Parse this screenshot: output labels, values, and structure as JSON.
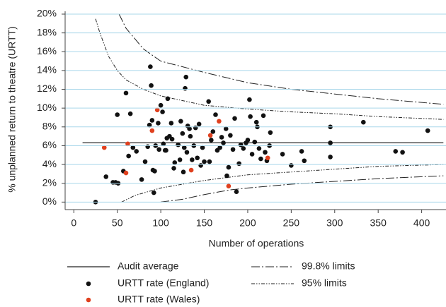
{
  "chart_data": {
    "type": "scatter",
    "xlabel": "Number of operations",
    "ylabel": "% unplanned return to theatre (URTT)",
    "xlim": [
      -10,
      428
    ],
    "ylim": [
      -0.8,
      20.3
    ],
    "xticks": [
      0,
      50,
      100,
      150,
      200,
      250,
      300,
      350,
      400
    ],
    "yticks": [
      {
        "value": 0,
        "label": "0%"
      },
      {
        "value": 2,
        "label": "2%"
      },
      {
        "value": 4,
        "label": "4%"
      },
      {
        "value": 6,
        "label": "6%"
      },
      {
        "value": 8,
        "label": "8%"
      },
      {
        "value": 10,
        "label": "10%"
      },
      {
        "value": 12,
        "label": "12%"
      },
      {
        "value": 14,
        "label": "14%"
      },
      {
        "value": 16,
        "label": "16%"
      },
      {
        "value": 18,
        "label": "18%"
      },
      {
        "value": 20,
        "label": "20%"
      }
    ],
    "grid": true,
    "grid_color": "#a9d7ea",
    "lines": [
      {
        "name": "Audit average",
        "color": "#222222",
        "x": [
          10,
          425
        ],
        "values": [
          6.3,
          6.3
        ]
      }
    ],
    "limits": [
      {
        "name": "99.8% limits",
        "color": "#222222",
        "dash": "12 3 2 3",
        "upper": {
          "x": [
            52,
            60,
            80,
            100,
            150,
            200,
            250,
            300,
            350,
            425
          ],
          "values": [
            20,
            18.5,
            16.3,
            15,
            13.8,
            12.7,
            12,
            11.5,
            11,
            10.4
          ]
        },
        "lower": {
          "x": [
            100,
            125,
            150,
            180,
            200,
            250,
            300,
            350,
            425
          ],
          "values": [
            0,
            0.3,
            0.8,
            1.3,
            1.5,
            1.9,
            2.2,
            2.5,
            2.8
          ]
        }
      },
      {
        "name": "95% limits",
        "color": "#222222",
        "dash": "5 2 1.5 2 1.5 2",
        "upper": {
          "x": [
            25,
            30,
            40,
            50,
            60,
            80,
            100,
            150,
            200,
            250,
            300,
            350,
            425
          ],
          "values": [
            19.5,
            18,
            15.5,
            14,
            13,
            12,
            11.3,
            10.3,
            9.9,
            9.6,
            9.4,
            9.1,
            8.8
          ]
        },
        "lower": {
          "x": [
            55,
            70,
            100,
            125,
            150,
            200,
            250,
            300,
            350,
            425
          ],
          "values": [
            0,
            0.7,
            1.5,
            1.9,
            2.3,
            2.9,
            3.2,
            3.5,
            3.8,
            4.0
          ]
        }
      }
    ],
    "series": [
      {
        "name": "URTT rate (England)",
        "color": "#111111",
        "x": [
          25,
          37,
          45,
          48,
          50,
          51,
          57,
          60,
          63,
          65,
          68,
          72,
          78,
          82,
          85,
          87,
          88,
          89,
          90,
          91,
          92,
          93,
          94,
          97,
          98,
          100,
          102,
          103,
          105,
          106,
          107,
          108,
          110,
          112,
          113,
          115,
          116,
          120,
          122,
          123,
          125,
          126,
          127,
          128,
          129,
          130,
          131,
          133,
          134,
          136,
          138,
          140,
          142,
          144,
          146,
          148,
          150,
          155,
          156,
          158,
          160,
          163,
          165,
          168,
          170,
          172,
          175,
          176,
          178,
          180,
          183,
          185,
          187,
          190,
          192,
          195,
          198,
          200,
          202,
          203,
          205,
          208,
          210,
          211,
          213,
          215,
          218,
          220,
          222,
          225,
          226,
          240,
          250,
          262,
          265,
          295,
          295,
          295,
          333,
          370,
          378,
          407
        ],
        "values": [
          0,
          2.7,
          2.1,
          2.1,
          9.3,
          2.0,
          3.3,
          11.6,
          4.9,
          9.4,
          5.8,
          5.4,
          2.4,
          4.3,
          5.9,
          8.2,
          14.4,
          12.4,
          8.7,
          3.4,
          1.0,
          3.3,
          6.0,
          8.4,
          5.6,
          10.3,
          9.6,
          6.2,
          5.5,
          5.5,
          6.8,
          11.0,
          7.0,
          8.4,
          6.7,
          3.6,
          4.2,
          6.1,
          4.5,
          8.6,
          7.3,
          3.2,
          5.8,
          12.1,
          13.3,
          5.3,
          8.1,
          7.8,
          7.0,
          4.5,
          6.0,
          7.9,
          4.7,
          8.3,
          3.9,
          5.8,
          4.3,
          10.7,
          4.3,
          6.6,
          7.5,
          9.3,
          5.5,
          5.8,
          6.9,
          6.3,
          7.8,
          2.8,
          3.7,
          7.1,
          5.6,
          8.9,
          1.1,
          4.1,
          6.1,
          5.7,
          6.3,
          6.6,
          10.9,
          9.1,
          5.1,
          6.4,
          8.5,
          8.0,
          5.7,
          4.6,
          9.2,
          5.3,
          4.4,
          6.0,
          7.4,
          5.1,
          3.9,
          5.4,
          4.4,
          8.0,
          6.3,
          4.8,
          8.5,
          5.4,
          5.3,
          7.6
        ]
      },
      {
        "name": "URTT rate (Wales)",
        "color": "#e0401e",
        "x": [
          35,
          60,
          62,
          90,
          96,
          135,
          157,
          167,
          178,
          223
        ],
        "values": [
          5.8,
          3.1,
          6.2,
          7.6,
          9.8,
          3.4,
          7.1,
          8.6,
          1.7,
          4.7
        ]
      }
    ]
  }
}
